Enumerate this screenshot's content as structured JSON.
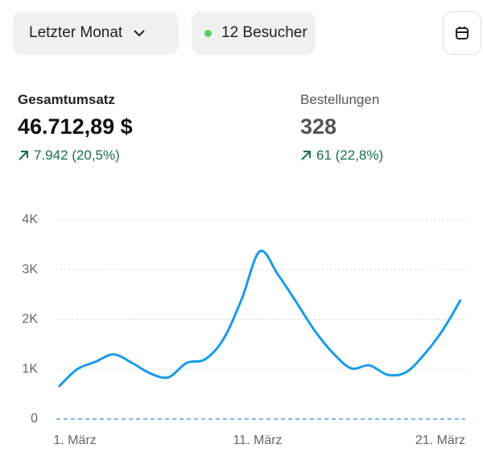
{
  "header": {
    "period": "Letzter Monat",
    "visitors": "12 Besucher"
  },
  "metrics": [
    {
      "label": "Gesamtumsatz",
      "value": "46.712,89 $",
      "change": "7.942 (20,5%)"
    },
    {
      "label": "Bestellungen",
      "value": "328",
      "change": "61 (22,8%)"
    }
  ],
  "chart_data": {
    "type": "line",
    "categories": [
      "1. März",
      null,
      null,
      null,
      null,
      null,
      null,
      null,
      null,
      null,
      "11. März",
      null,
      null,
      null,
      null,
      null,
      null,
      null,
      null,
      null,
      "21. März",
      null,
      null
    ],
    "series": [
      {
        "color": "#1a9be8",
        "values": [
          650,
          1000,
          1150,
          1300,
          1130,
          920,
          840,
          1130,
          1200,
          1600,
          2400,
          3370,
          2900,
          2350,
          1780,
          1330,
          1020,
          1080,
          890,
          940,
          1300,
          1780,
          2400
        ]
      }
    ],
    "ylim": [
      0,
      4000
    ],
    "yticks": [
      0,
      {
        "value": 1000,
        "label": "1K"
      },
      {
        "value": 2000,
        "label": "2K"
      },
      {
        "value": 3000,
        "label": "3K"
      },
      {
        "value": 4000,
        "label": "4K"
      }
    ],
    "grid": true
  }
}
